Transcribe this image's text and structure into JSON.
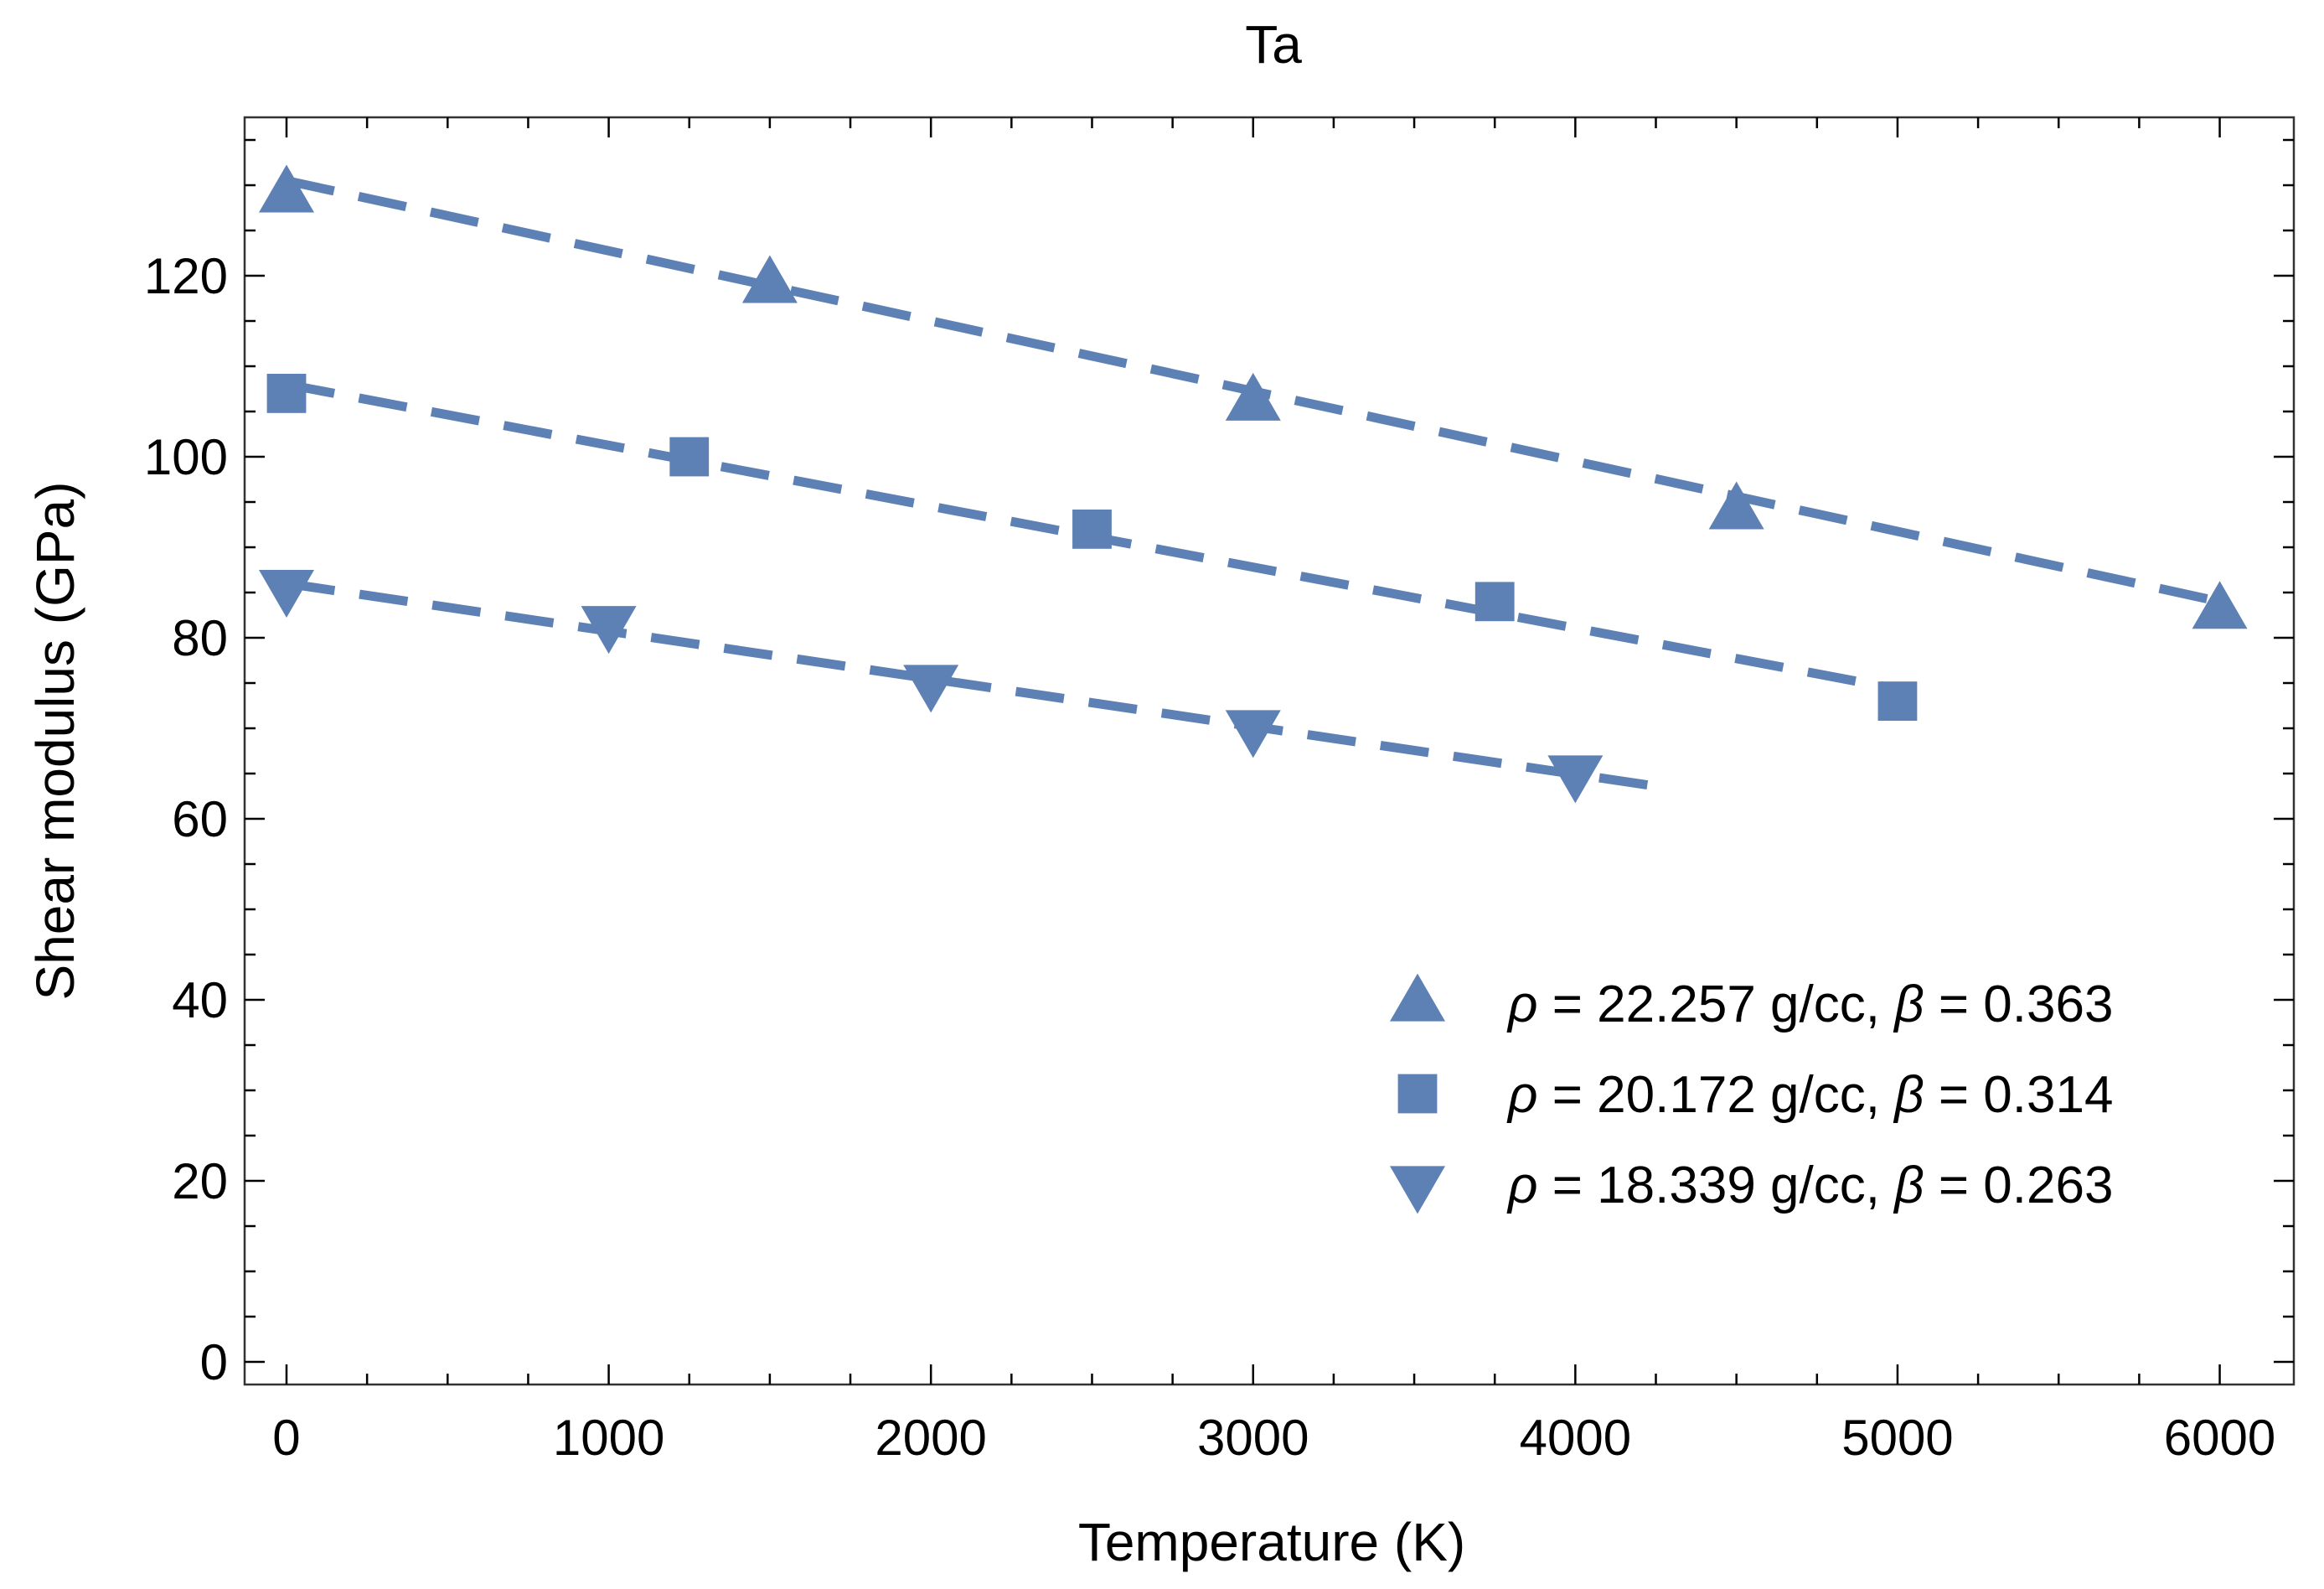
{
  "chart_data": {
    "type": "scatter",
    "title": "Ta",
    "xlabel": "Temperature (K)",
    "ylabel": "Shear modulus (GPa)",
    "xlim": [
      -130,
      6230
    ],
    "ylim": [
      -2.5,
      137.5
    ],
    "x_ticks": [
      0,
      1000,
      2000,
      3000,
      4000,
      5000,
      6000
    ],
    "x_tick_labels": [
      "0",
      "1000",
      "2000",
      "3000",
      "4000",
      "5000",
      "6000"
    ],
    "y_ticks": [
      0,
      20,
      40,
      60,
      80,
      100,
      120
    ],
    "y_tick_labels": [
      "0",
      "20",
      "40",
      "60",
      "80",
      "100",
      "120"
    ],
    "grid": false,
    "legend_position": "bottom-right",
    "series": [
      {
        "name": "rho = 22.257 g/cc, beta = 0.363",
        "legend": {
          "rho_symbol": "ρ",
          "rho_text": " = 22.257 g/cc, ",
          "beta_symbol": "β",
          "beta_text": " = 0.363"
        },
        "marker": "triangle-up",
        "points": [
          {
            "x": 0,
            "y": 129
          },
          {
            "x": 1500,
            "y": 119
          },
          {
            "x": 3000,
            "y": 106
          },
          {
            "x": 4500,
            "y": 94
          },
          {
            "x": 6000,
            "y": 83
          }
        ],
        "fit_line": {
          "x": [
            0,
            6000
          ],
          "y": [
            130.5,
            84
          ]
        }
      },
      {
        "name": "rho = 20.172 g/cc, beta = 0.314",
        "legend": {
          "rho_symbol": "ρ",
          "rho_text": " = 20.172 g/cc, ",
          "beta_symbol": "β",
          "beta_text": " = 0.314"
        },
        "marker": "square",
        "points": [
          {
            "x": 0,
            "y": 107
          },
          {
            "x": 1250,
            "y": 100
          },
          {
            "x": 2500,
            "y": 92
          },
          {
            "x": 3750,
            "y": 84
          },
          {
            "x": 5000,
            "y": 73
          }
        ],
        "fit_line": {
          "x": [
            0,
            5050
          ],
          "y": [
            108,
            74
          ]
        }
      },
      {
        "name": "rho = 18.339 g/cc, beta = 0.263",
        "legend": {
          "rho_symbol": "ρ",
          "rho_text": " = 18.339 g/cc, ",
          "beta_symbol": "β",
          "beta_text": " = 0.263"
        },
        "marker": "triangle-down",
        "points": [
          {
            "x": 0,
            "y": 85.5
          },
          {
            "x": 1000,
            "y": 81.5
          },
          {
            "x": 2000,
            "y": 75
          },
          {
            "x": 3000,
            "y": 70
          },
          {
            "x": 4000,
            "y": 65
          }
        ],
        "fit_line": {
          "x": [
            0,
            4270
          ],
          "y": [
            86,
            63.5
          ]
        }
      }
    ],
    "colors": {
      "series": "#5e81b5",
      "axis": "#000000",
      "frame": "#333333"
    }
  }
}
